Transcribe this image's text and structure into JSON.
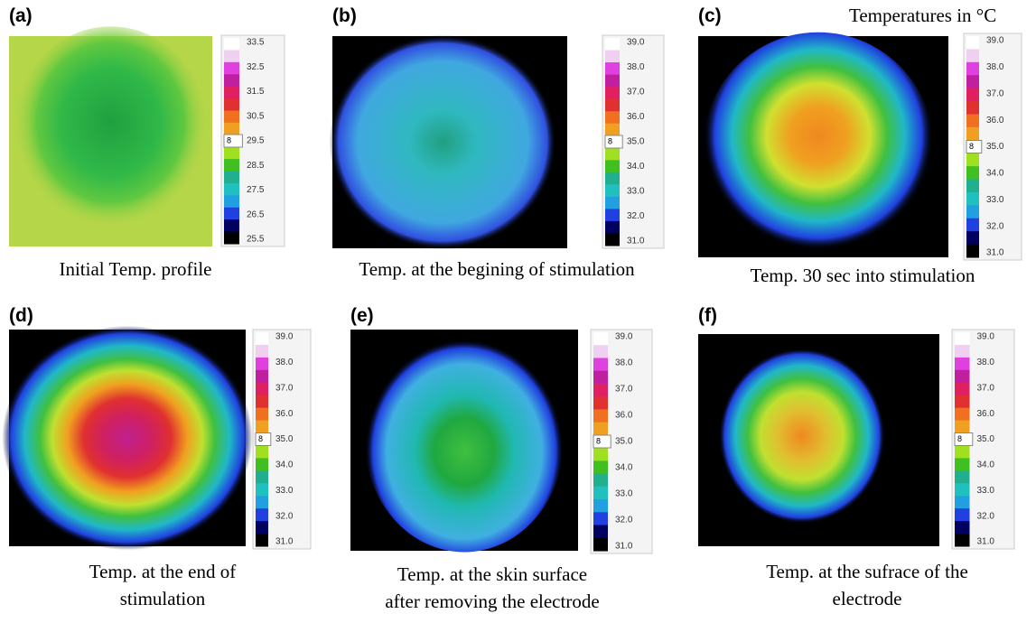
{
  "header": {
    "title": "Temperatures in °C"
  },
  "panels": [
    {
      "label": "(a)",
      "caption": [
        "Initial Temp. profile"
      ],
      "spinner": "8",
      "ticks": [
        "33.5",
        "32.5",
        "31.5",
        "30.5",
        "29.5",
        "28.5",
        "27.5",
        "26.5",
        "25.5"
      ]
    },
    {
      "label": "(b)",
      "caption": [
        "Temp. at the begining of stimulation"
      ],
      "spinner": "8",
      "ticks": [
        "39.0",
        "38.0",
        "37.0",
        "36.0",
        "35.0",
        "34.0",
        "33.0",
        "32.0",
        "31.0"
      ]
    },
    {
      "label": "(c)",
      "caption": [
        "Temp. 30 sec into stimulation"
      ],
      "spinner": "8",
      "ticks": [
        "39.0",
        "38.0",
        "37.0",
        "36.0",
        "35.0",
        "34.0",
        "33.0",
        "32.0",
        "31.0"
      ]
    },
    {
      "label": "(d)",
      "caption": [
        "Temp. at the end of",
        "stimulation"
      ],
      "spinner": "8",
      "ticks": [
        "39.0",
        "38.0",
        "37.0",
        "36.0",
        "35.0",
        "34.0",
        "33.0",
        "32.0",
        "31.0"
      ]
    },
    {
      "label": "(e)",
      "caption": [
        "Temp. at the skin surface",
        "after removing the electrode"
      ],
      "spinner": "8",
      "ticks": [
        "39.0",
        "38.0",
        "37.0",
        "36.0",
        "35.0",
        "34.0",
        "33.0",
        "32.0",
        "31.0"
      ]
    },
    {
      "label": "(f)",
      "caption": [
        "Temp. at the sufrace of the",
        "electrode"
      ],
      "spinner": "8",
      "ticks": [
        "39.0",
        "38.0",
        "37.0",
        "36.0",
        "35.0",
        "34.0",
        "33.0",
        "32.0",
        "31.0"
      ]
    }
  ]
}
